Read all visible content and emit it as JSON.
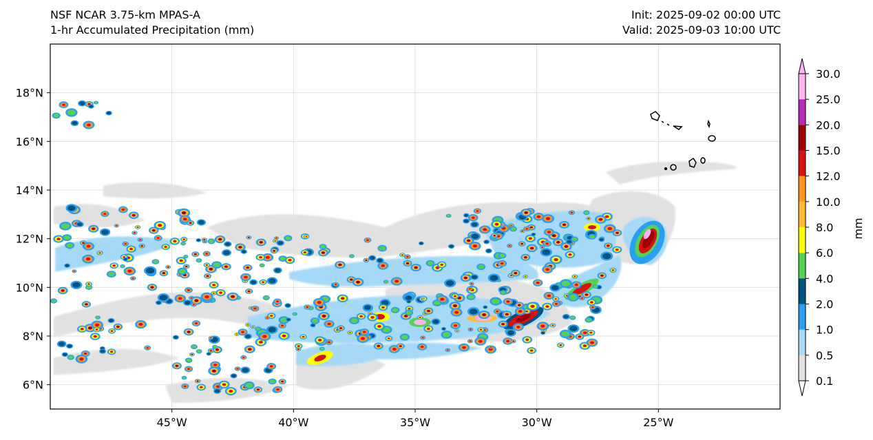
{
  "header": {
    "model": "NSF NCAR 3.75-km MPAS-A",
    "field": "1-hr Accumulated Precipitation (mm)",
    "init": "Init: 2025-09-02 00:00 UTC",
    "valid": "Valid: 2025-09-03 10:00 UTC"
  },
  "map": {
    "lon_range": [
      -50,
      -20
    ],
    "lat_range": [
      5,
      20
    ],
    "lon_ticks": [
      "45°W",
      "40°W",
      "35°W",
      "30°W",
      "25°W"
    ],
    "lat_ticks": [
      "6°N",
      "8°N",
      "10°N",
      "12°N",
      "14°N",
      "16°N",
      "18°N"
    ],
    "gridlines": true,
    "land_features": "Cape Verde Islands outlines (upper right)"
  },
  "colorbar": {
    "unit": "mm",
    "levels": [
      "0.1",
      "0.5",
      "1.0",
      "2.0",
      "4.0",
      "6.0",
      "8.0",
      "10.0",
      "12.0",
      "15.0",
      "20.0",
      "25.0",
      "30.0"
    ],
    "colors": [
      "#e1e1e1",
      "#a6d8f7",
      "#2a9ff2",
      "#00527f",
      "#55d156",
      "#ffff00",
      "#ffba3b",
      "#ff9424",
      "#d41414",
      "#9c0000",
      "#b52ab8",
      "#fcb3f4"
    ],
    "extend": "both"
  }
}
